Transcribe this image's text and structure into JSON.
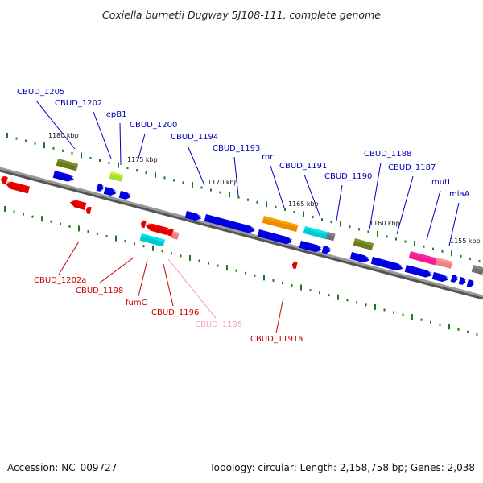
{
  "title": "Coxiella burnetii Dugway 5J108-111, complete genome",
  "footer": {
    "accession": "Accession: NC_009727",
    "topology": "Topology: circular; Length: 2,158,758 bp; Genes: 2,038"
  },
  "colors": {
    "forward": "#0000dd",
    "reverse": "#e00000",
    "olive": "#6b7a1f",
    "lime": "#a8e030",
    "orange": "#f08a00",
    "cyan": "#00c8d0",
    "magenta": "#f0208a",
    "pink": "#f08080",
    "gray": "#707070",
    "tick": "#1f7a1f",
    "backbone": "#888888",
    "label_top": "#0000bb",
    "label_bottom": "#cc0000",
    "label_pale": "#f4a0b8"
  },
  "kbp_labels": [
    "1180 kbp",
    "1175 kbp",
    "1170 kbp",
    "1165 kbp",
    "1160 kbp",
    "1155 kbp"
  ],
  "gene_labels_top": [
    "CBUD_1205",
    "CBUD_1202",
    "lepB1",
    "CBUD_1200",
    "CBUD_1194",
    "CBUD_1193",
    "rnr",
    "CBUD_1191",
    "CBUD_1190",
    "CBUD_1188",
    "CBUD_1187",
    "mutL",
    "miaA"
  ],
  "gene_labels_bottom": [
    "CBUD_1202a",
    "CBUD_1198",
    "fumC",
    "CBUD_1196",
    "CBUD_1195",
    "CBUD_1191a"
  ]
}
